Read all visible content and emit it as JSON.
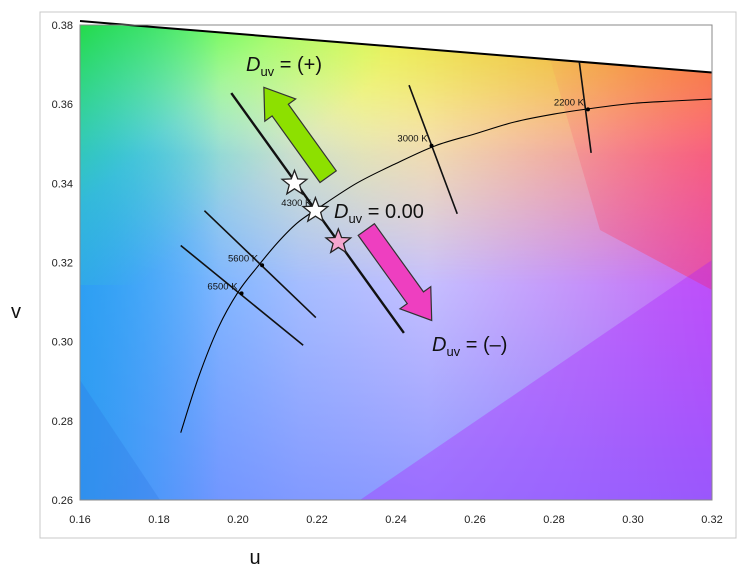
{
  "chart_data": {
    "type": "scatter",
    "title": "",
    "xlabel": "u",
    "ylabel": "v",
    "xlim": [
      0.16,
      0.32
    ],
    "ylim": [
      0.26,
      0.38
    ],
    "x_ticks": [
      "0.16",
      "0.18",
      "0.20",
      "0.22",
      "0.24",
      "0.26",
      "0.28",
      "0.30",
      "0.32"
    ],
    "y_ticks": [
      "0.26",
      "0.28",
      "0.30",
      "0.32",
      "0.34",
      "0.36",
      "0.38"
    ],
    "grid": false,
    "planckian_locus": {
      "x": [
        0.1855,
        0.19,
        0.195,
        0.2,
        0.205,
        0.21,
        0.215,
        0.22,
        0.23,
        0.24,
        0.25,
        0.26,
        0.27,
        0.28,
        0.29,
        0.3,
        0.31,
        0.32
      ],
      "y": [
        0.277,
        0.291,
        0.3035,
        0.3125,
        0.319,
        0.325,
        0.33,
        0.3335,
        0.34,
        0.345,
        0.3495,
        0.3525,
        0.3555,
        0.3575,
        0.359,
        0.3602,
        0.3608,
        0.3613
      ]
    },
    "spectrum_locus_edge": {
      "x": [
        0.16,
        0.32
      ],
      "y": [
        0.381,
        0.368
      ]
    },
    "isotherms": [
      {
        "label": "6500 K",
        "cct_point": [
          0.2009,
          0.3122
        ],
        "line": [
          [
            0.1855,
            0.3243
          ],
          [
            0.2165,
            0.2991
          ]
        ]
      },
      {
        "label": "5600 K",
        "cct_point": [
          0.2061,
          0.3193
        ],
        "line": [
          [
            0.1915,
            0.3331
          ],
          [
            0.2197,
            0.3061
          ]
        ]
      },
      {
        "label": "4300 K",
        "cct_point": [
          0.2196,
          0.3333
        ],
        "line": [
          [
            0.1983,
            0.3628
          ],
          [
            0.242,
            0.3022
          ]
        ]
      },
      {
        "label": "3000 K",
        "cct_point": [
          0.249,
          0.3495
        ],
        "line": [
          [
            0.2433,
            0.3648
          ],
          [
            0.2555,
            0.3323
          ]
        ]
      },
      {
        "label": "2200 K",
        "cct_point": [
          0.2886,
          0.3587
        ],
        "line": [
          [
            0.2864,
            0.3707
          ],
          [
            0.2894,
            0.3477
          ]
        ]
      }
    ],
    "stars": [
      {
        "u": 0.2143,
        "v": 0.34,
        "fill": "#ffffff"
      },
      {
        "u": 0.2196,
        "v": 0.3331,
        "fill": "#ffffff"
      },
      {
        "u": 0.2254,
        "v": 0.3252,
        "fill": "#f4a6cf"
      }
    ],
    "annotations": {
      "positive": {
        "symbol": "D",
        "subscript": "uv",
        "text": " = (+)"
      },
      "zero": {
        "symbol": "D",
        "subscript": "uv",
        "text": " = 0.00"
      },
      "negative": {
        "symbol": "D",
        "subscript": "uv",
        "text": " = (–)"
      }
    },
    "colors": {
      "isotherm": "#111111",
      "locus": "#111111",
      "arrow_positive": "#8de000",
      "arrow_negative": "#ee3fc0"
    }
  }
}
